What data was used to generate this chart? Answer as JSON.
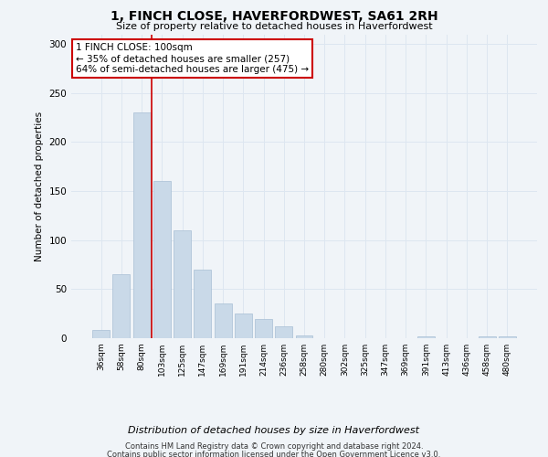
{
  "title": "1, FINCH CLOSE, HAVERFORDWEST, SA61 2RH",
  "subtitle": "Size of property relative to detached houses in Haverfordwest",
  "xlabel": "Distribution of detached houses by size in Haverfordwest",
  "ylabel": "Number of detached properties",
  "footer_line1": "Contains HM Land Registry data © Crown copyright and database right 2024.",
  "footer_line2": "Contains public sector information licensed under the Open Government Licence v3.0.",
  "categories": [
    "36sqm",
    "58sqm",
    "80sqm",
    "103sqm",
    "125sqm",
    "147sqm",
    "169sqm",
    "191sqm",
    "214sqm",
    "236sqm",
    "258sqm",
    "280sqm",
    "302sqm",
    "325sqm",
    "347sqm",
    "369sqm",
    "391sqm",
    "413sqm",
    "436sqm",
    "458sqm",
    "480sqm"
  ],
  "values": [
    8,
    65,
    230,
    160,
    110,
    70,
    35,
    25,
    20,
    12,
    3,
    0,
    0,
    0,
    0,
    0,
    2,
    0,
    0,
    2,
    2
  ],
  "bar_color": "#c9d9e8",
  "bar_edge_color": "#a8bfd4",
  "vline_color": "#cc0000",
  "annotation_text": "1 FINCH CLOSE: 100sqm\n← 35% of detached houses are smaller (257)\n64% of semi-detached houses are larger (475) →",
  "annotation_box_color": "white",
  "annotation_box_edge_color": "#cc0000",
  "ylim": [
    0,
    310
  ],
  "yticks": [
    0,
    50,
    100,
    150,
    200,
    250,
    300
  ],
  "grid_color": "#dde6f0",
  "bg_color": "#f0f4f8"
}
